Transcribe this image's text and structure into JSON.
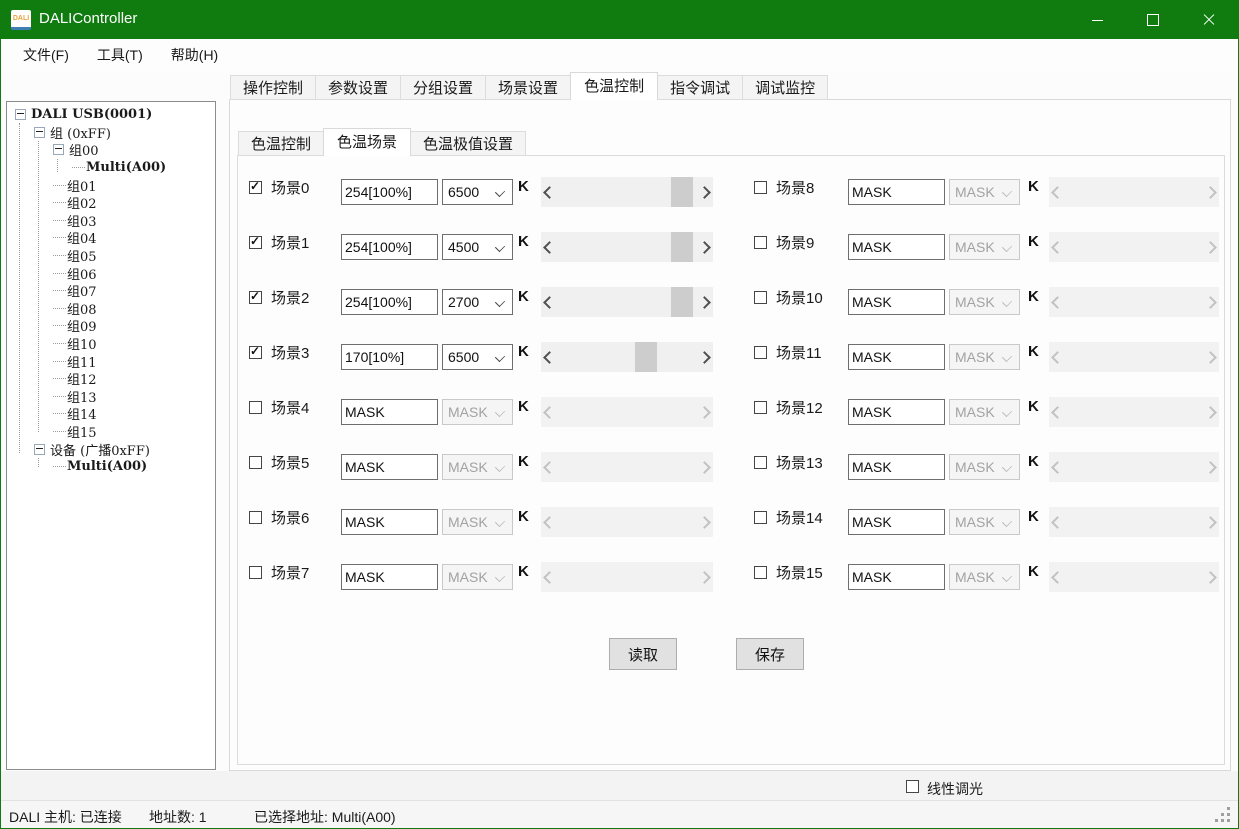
{
  "window": {
    "title": "DALIController",
    "icon_label": "DALI"
  },
  "menu": {
    "items": [
      "文件(F)",
      "工具(T)",
      "帮助(H)"
    ]
  },
  "tree": {
    "items": [
      {
        "label": "DALI USB(0001)",
        "level": 0,
        "expander": true,
        "bold": true
      },
      {
        "label": "组 (0xFF)",
        "level": 1,
        "expander": true,
        "bold": false
      },
      {
        "label": "组00",
        "level": 2,
        "expander": true,
        "bold": false
      },
      {
        "label": "Multi(A00)",
        "level": 3,
        "expander": false,
        "bold": true
      },
      {
        "label": "组01",
        "level": 2,
        "expander": false,
        "bold": false
      },
      {
        "label": "组02",
        "level": 2,
        "expander": false,
        "bold": false
      },
      {
        "label": "组03",
        "level": 2,
        "expander": false,
        "bold": false
      },
      {
        "label": "组04",
        "level": 2,
        "expander": false,
        "bold": false
      },
      {
        "label": "组05",
        "level": 2,
        "expander": false,
        "bold": false
      },
      {
        "label": "组06",
        "level": 2,
        "expander": false,
        "bold": false
      },
      {
        "label": "组07",
        "level": 2,
        "expander": false,
        "bold": false
      },
      {
        "label": "组08",
        "level": 2,
        "expander": false,
        "bold": false
      },
      {
        "label": "组09",
        "level": 2,
        "expander": false,
        "bold": false
      },
      {
        "label": "组10",
        "level": 2,
        "expander": false,
        "bold": false
      },
      {
        "label": "组11",
        "level": 2,
        "expander": false,
        "bold": false
      },
      {
        "label": "组12",
        "level": 2,
        "expander": false,
        "bold": false
      },
      {
        "label": "组13",
        "level": 2,
        "expander": false,
        "bold": false
      },
      {
        "label": "组14",
        "level": 2,
        "expander": false,
        "bold": false
      },
      {
        "label": "组15",
        "level": 2,
        "expander": false,
        "bold": false
      },
      {
        "label": "设备 (广播0xFF)",
        "level": 1,
        "expander": true,
        "bold": false
      },
      {
        "label": "Multi(A00)",
        "level": 2,
        "expander": false,
        "bold": true
      }
    ]
  },
  "tabs": {
    "active_index": 4,
    "items": [
      "操作控制",
      "参数设置",
      "分组设置",
      "场景设置",
      "色温控制",
      "指令调试",
      "调试监控"
    ]
  },
  "subtabs": {
    "active_index": 1,
    "items": [
      "色温控制",
      "色温场景",
      "色温极值设置"
    ]
  },
  "scene_panel": {
    "unit_label": "K",
    "scenes": [
      {
        "label": "场景0",
        "checked": true,
        "value": "254[100%]",
        "color_temp": "6500",
        "thumb": 0.97
      },
      {
        "label": "场景1",
        "checked": true,
        "value": "254[100%]",
        "color_temp": "4500",
        "thumb": 0.97
      },
      {
        "label": "场景2",
        "checked": true,
        "value": "254[100%]",
        "color_temp": "2700",
        "thumb": 0.97
      },
      {
        "label": "场景3",
        "checked": true,
        "value": "170[10%]",
        "color_temp": "6500",
        "thumb": 0.66
      },
      {
        "label": "场景4",
        "checked": false,
        "value": "MASK",
        "color_temp": "MASK",
        "thumb": null
      },
      {
        "label": "场景5",
        "checked": false,
        "value": "MASK",
        "color_temp": "MASK",
        "thumb": null
      },
      {
        "label": "场景6",
        "checked": false,
        "value": "MASK",
        "color_temp": "MASK",
        "thumb": null
      },
      {
        "label": "场景7",
        "checked": false,
        "value": "MASK",
        "color_temp": "MASK",
        "thumb": null
      },
      {
        "label": "场景8",
        "checked": false,
        "value": "MASK",
        "color_temp": "MASK",
        "thumb": null
      },
      {
        "label": "场景9",
        "checked": false,
        "value": "MASK",
        "color_temp": "MASK",
        "thumb": null
      },
      {
        "label": "场景10",
        "checked": false,
        "value": "MASK",
        "color_temp": "MASK",
        "thumb": null
      },
      {
        "label": "场景11",
        "checked": false,
        "value": "MASK",
        "color_temp": "MASK",
        "thumb": null
      },
      {
        "label": "场景12",
        "checked": false,
        "value": "MASK",
        "color_temp": "MASK",
        "thumb": null
      },
      {
        "label": "场景13",
        "checked": false,
        "value": "MASK",
        "color_temp": "MASK",
        "thumb": null
      },
      {
        "label": "场景14",
        "checked": false,
        "value": "MASK",
        "color_temp": "MASK",
        "thumb": null
      },
      {
        "label": "场景15",
        "checked": false,
        "value": "MASK",
        "color_temp": "MASK",
        "thumb": null
      }
    ],
    "read_button": "读取",
    "save_button": "保存"
  },
  "footer": {
    "linear_dim_label": "线性调光",
    "linear_dim_checked": false
  },
  "status_bar": {
    "host": "DALI 主机: 已连接",
    "address_count": "地址数: 1",
    "selected_address": "已选择地址: Multi(A00)"
  },
  "colors": {
    "titlebar_green": "#107C10",
    "window_border": "#107C10",
    "scrollbar_thumb": "#cdcdcd",
    "scrollbar_track": "#f0f0f0"
  }
}
